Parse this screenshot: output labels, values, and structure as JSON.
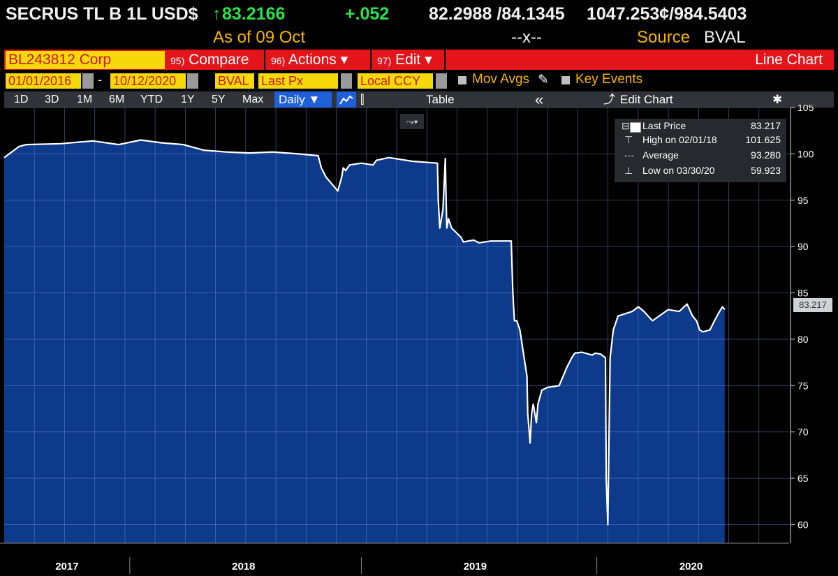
{
  "header": {
    "ticker": "SECRUS TL B 1L USD$",
    "arrow": "↑",
    "last": "83.2166",
    "change": "+.052",
    "bid_ask": "82.2988 /84.1345",
    "size": "1047.253¢/984.5403",
    "as_of": "As of 09 Oct",
    "mid": "--x--",
    "source_label": "Source",
    "source": "BVAL"
  },
  "toolbar": {
    "security": "BL243812 Corp",
    "compare": {
      "num": "95)",
      "label": "Compare"
    },
    "actions": {
      "num": "96)",
      "label": "Actions ▾"
    },
    "edit": {
      "num": "97)",
      "label": "Edit ▾"
    },
    "chart_type": "Line Chart"
  },
  "fields": {
    "start_date": "01/01/2016",
    "dash": "-",
    "end_date": "10/12/2020",
    "source": "BVAL",
    "field": "Last Px",
    "currency": "Local CCY",
    "mov_avgs": "Mov Avgs",
    "key_events": "Key Events"
  },
  "periods": [
    "1D",
    "3D",
    "1M",
    "6M",
    "YTD",
    "1Y",
    "5Y",
    "Max"
  ],
  "frequency": "Daily ▼",
  "table_label": "Table",
  "collapse_icon": "«",
  "edit_chart": "Edit Chart",
  "gear": "✱",
  "legend": {
    "last_price_label": "Last Price",
    "last_price": "83.217",
    "high_label": "High on 02/01/18",
    "high": "101.625",
    "average_label": "Average",
    "average": "93.280",
    "low_label": "Low on 03/30/20",
    "low": "59.923"
  },
  "last_price_tag": "83.217",
  "colors": {
    "area_fill": "#0d3a8a",
    "line": "#ffffff",
    "grid": "#6f93d8",
    "header_green": "#27e24a",
    "header_amber": "#f7b500",
    "bar_red": "#e4141b",
    "field_yellow": "#f5d90a"
  },
  "chart_data": {
    "type": "area",
    "ylim": [
      58,
      105
    ],
    "yticks": [
      60,
      65,
      70,
      75,
      80,
      85,
      90,
      95,
      100,
      105
    ],
    "xlabels": [
      "2017",
      "2018",
      "2019",
      "2020"
    ],
    "grid": true,
    "series": [
      {
        "x": [
          0.0,
          0.019,
          0.028,
          0.072,
          0.113,
          0.146,
          0.174,
          0.2,
          0.228,
          0.254,
          0.283,
          0.313,
          0.342,
          0.375,
          0.4,
          0.404,
          0.41,
          0.425,
          0.43,
          0.432,
          0.435,
          0.44,
          0.455,
          0.47,
          0.474,
          0.49,
          0.52,
          0.552,
          0.553,
          0.555,
          0.559,
          0.562,
          0.563,
          0.564,
          0.566,
          0.57,
          0.582,
          0.585,
          0.598,
          0.605,
          0.62,
          0.646,
          0.648,
          0.65,
          0.653,
          0.657,
          0.666,
          0.667,
          0.67,
          0.672,
          0.674,
          0.675,
          0.678,
          0.68,
          0.685,
          0.692,
          0.707,
          0.717,
          0.723,
          0.727,
          0.736,
          0.749,
          0.753,
          0.76,
          0.766,
          0.767,
          0.769,
          0.772,
          0.776,
          0.782,
          0.8,
          0.808,
          0.815,
          0.826,
          0.846,
          0.86,
          0.87,
          0.877,
          0.882,
          0.886,
          0.89,
          0.899,
          0.905,
          0.91,
          0.915,
          0.918
        ],
        "values": [
          99.6,
          100.8,
          101.0,
          101.1,
          101.4,
          101.0,
          101.5,
          101.2,
          101.0,
          100.4,
          100.2,
          100.1,
          100.2,
          100.0,
          99.8,
          98.5,
          97.5,
          96.0,
          97.5,
          98.5,
          98.2,
          98.8,
          99.0,
          98.8,
          99.3,
          99.6,
          99.2,
          99.0,
          95.0,
          92.0,
          94.0,
          99.5,
          95.0,
          92.0,
          93.0,
          92.0,
          91.0,
          90.5,
          90.7,
          90.4,
          90.6,
          90.6,
          85.0,
          82.0,
          82.0,
          81.0,
          76.0,
          72.0,
          68.8,
          72.0,
          73.0,
          72.5,
          71.0,
          73.0,
          74.5,
          74.8,
          75.0,
          77.0,
          78.0,
          78.5,
          78.6,
          78.3,
          78.5,
          78.4,
          78.0,
          65.0,
          60.0,
          78.0,
          81.0,
          82.5,
          83.0,
          83.5,
          83.0,
          82.0,
          83.2,
          83.0,
          83.8,
          82.5,
          82.0,
          81.0,
          80.8,
          81.0,
          82.0,
          82.8,
          83.5,
          83.2
        ]
      }
    ]
  }
}
